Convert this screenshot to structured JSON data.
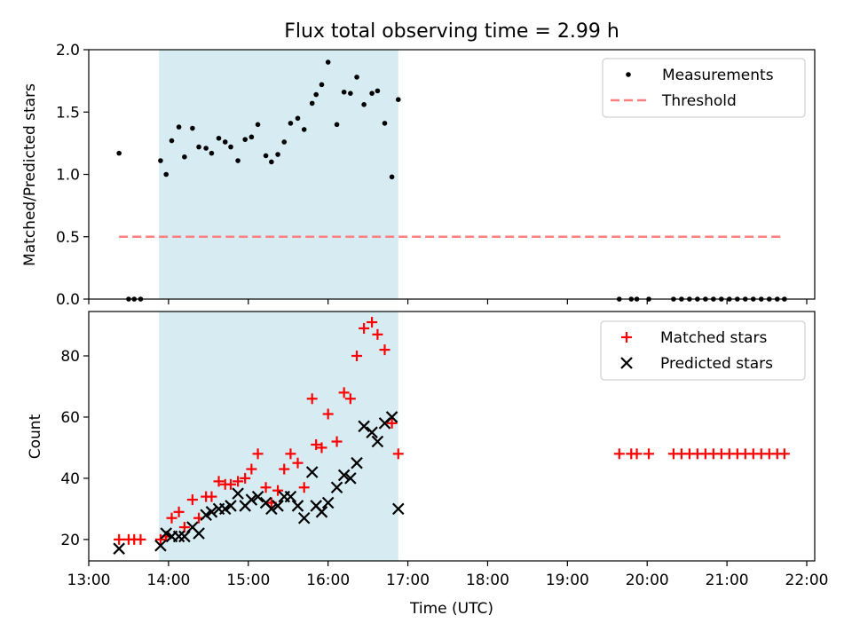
{
  "figure": {
    "title": "Flux total observing time = 2.99 h",
    "xlabel": "Time (UTC)"
  },
  "colors": {
    "shade": "#add8e6",
    "threshold": "#ff7f7f",
    "matched": "#ff0000",
    "predicted": "#000000",
    "points": "#000000"
  },
  "chart_data": [
    {
      "type": "scatter",
      "title": "Flux total observing time = 2.99 h",
      "xlabel": "",
      "ylabel": "Matched/Predicted stars",
      "xlim": [
        13.0,
        22.1
      ],
      "ylim": [
        0.0,
        2.0
      ],
      "yticks": [
        0.0,
        0.5,
        1.0,
        1.5,
        2.0
      ],
      "ytick_labels": [
        "0.0",
        "0.5",
        "1.0",
        "1.5",
        "2.0"
      ],
      "shaded_span": [
        13.88,
        16.88
      ],
      "legend": {
        "position": "top-right",
        "entries": [
          "Measurements",
          "Threshold"
        ]
      },
      "threshold": {
        "name": "Threshold",
        "x": [
          13.38,
          21.7
        ],
        "y": 0.5
      },
      "series": [
        {
          "name": "Measurements",
          "marker": "dot",
          "x": [
            13.38,
            13.5,
            13.57,
            13.65,
            13.9,
            13.97,
            14.04,
            14.13,
            14.2,
            14.3,
            14.38,
            14.47,
            14.54,
            14.63,
            14.71,
            14.78,
            14.87,
            14.96,
            15.04,
            15.12,
            15.22,
            15.29,
            15.37,
            15.45,
            15.53,
            15.62,
            15.7,
            15.8,
            15.85,
            15.92,
            16.0,
            16.11,
            16.2,
            16.28,
            16.36,
            16.45,
            16.55,
            16.62,
            16.71,
            16.8,
            16.88,
            19.65,
            19.8,
            19.87,
            20.02,
            20.33,
            20.43,
            20.53,
            20.63,
            20.73,
            20.83,
            20.93,
            21.03,
            21.13,
            21.23,
            21.33,
            21.43,
            21.53,
            21.63,
            21.72
          ],
          "y": [
            1.17,
            0.0,
            0.0,
            0.0,
            1.11,
            1.0,
            1.27,
            1.38,
            1.14,
            1.37,
            1.22,
            1.21,
            1.17,
            1.29,
            1.26,
            1.22,
            1.11,
            1.28,
            1.3,
            1.4,
            1.15,
            1.1,
            1.16,
            1.26,
            1.41,
            1.45,
            1.36,
            1.57,
            1.64,
            1.72,
            1.9,
            1.4,
            1.66,
            1.65,
            1.78,
            1.56,
            1.65,
            1.67,
            1.41,
            0.98,
            1.6,
            0.0,
            0.0,
            0.0,
            0.0,
            0.0,
            0.0,
            0.0,
            0.0,
            0.0,
            0.0,
            0.0,
            0.0,
            0.0,
            0.0,
            0.0,
            0.0,
            0.0,
            0.0,
            0.0
          ]
        }
      ]
    },
    {
      "type": "scatter",
      "xlabel": "Time (UTC)",
      "ylabel": "Count",
      "xlim": [
        13.0,
        22.1
      ],
      "ylim": [
        13.0,
        94.5
      ],
      "yticks": [
        20,
        40,
        60,
        80
      ],
      "ytick_labels": [
        "20",
        "40",
        "60",
        "80"
      ],
      "xticks": [
        13,
        14,
        15,
        16,
        17,
        18,
        19,
        20,
        21,
        22
      ],
      "xtick_labels": [
        "13:00",
        "14:00",
        "15:00",
        "16:00",
        "17:00",
        "18:00",
        "19:00",
        "20:00",
        "21:00",
        "22:00"
      ],
      "shaded_span": [
        13.88,
        16.88
      ],
      "legend": {
        "position": "top-right",
        "entries": [
          "Matched stars",
          "Predicted stars"
        ]
      },
      "series": [
        {
          "name": "Matched stars",
          "marker": "plus",
          "x": [
            13.38,
            13.5,
            13.57,
            13.65,
            13.9,
            13.97,
            14.04,
            14.13,
            14.2,
            14.3,
            14.38,
            14.47,
            14.54,
            14.63,
            14.71,
            14.78,
            14.87,
            14.96,
            15.04,
            15.12,
            15.22,
            15.29,
            15.37,
            15.45,
            15.53,
            15.62,
            15.7,
            15.8,
            15.85,
            15.92,
            16.0,
            16.11,
            16.2,
            16.28,
            16.36,
            16.45,
            16.55,
            16.62,
            16.71,
            16.8,
            16.88,
            19.65,
            19.8,
            19.87,
            20.02,
            20.33,
            20.43,
            20.53,
            20.63,
            20.73,
            20.83,
            20.93,
            21.03,
            21.13,
            21.23,
            21.33,
            21.43,
            21.53,
            21.63,
            21.72
          ],
          "y": [
            20,
            20,
            20,
            20,
            20,
            21,
            27,
            29,
            24,
            33,
            27,
            34,
            34,
            39,
            38,
            38,
            39,
            40,
            43,
            48,
            37,
            32,
            36,
            43,
            48,
            45,
            37,
            66,
            51,
            50,
            61,
            52,
            68,
            66,
            80,
            89,
            91,
            87,
            82,
            58,
            48,
            48,
            48,
            48,
            48,
            48,
            48,
            48,
            48,
            48,
            48,
            48,
            48,
            48,
            48,
            48,
            48,
            48,
            48,
            48
          ]
        },
        {
          "name": "Predicted stars",
          "marker": "x",
          "x": [
            13.38,
            13.9,
            13.97,
            14.04,
            14.13,
            14.2,
            14.3,
            14.38,
            14.47,
            14.54,
            14.63,
            14.71,
            14.78,
            14.87,
            14.96,
            15.04,
            15.12,
            15.22,
            15.29,
            15.37,
            15.45,
            15.53,
            15.62,
            15.7,
            15.8,
            15.85,
            15.92,
            16.0,
            16.11,
            16.2,
            16.28,
            16.36,
            16.45,
            16.55,
            16.62,
            16.71,
            16.8,
            16.88
          ],
          "y": [
            17,
            18,
            22,
            21,
            21,
            21,
            24,
            22,
            28,
            29,
            30,
            30,
            31,
            35,
            31,
            33,
            34,
            32,
            30,
            31,
            34,
            34,
            31,
            27,
            42,
            31,
            29,
            32,
            37,
            41,
            40,
            45,
            57,
            55,
            52,
            58,
            60,
            30
          ]
        }
      ]
    }
  ]
}
